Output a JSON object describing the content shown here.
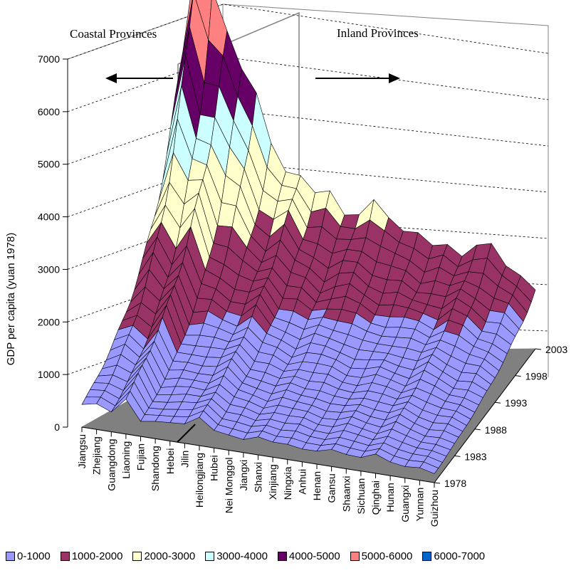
{
  "chart_data": {
    "type": "surface3d",
    "title": "",
    "ylabel": "GDP per capita (yuan 1978)",
    "ylim": [
      0,
      7000
    ],
    "z_ticks": [
      0,
      1000,
      2000,
      3000,
      4000,
      5000,
      6000,
      7000
    ],
    "provinces": [
      "Jiangsu",
      "Zhejiang",
      "Guangdong",
      "Liaoning",
      "Fujian",
      "Shandong",
      "Hebei",
      "Jilin",
      "Heilongjiang",
      "Hubei",
      "Nei Monggol",
      "Jiangxi",
      "Shanxi",
      "Xinjiang",
      "Ningxia",
      "Anhui",
      "Henan",
      "Gansu",
      "Shaanxi",
      "Sichuan",
      "Qinghai",
      "Hunan",
      "Guangxi",
      "Yunnan",
      "Guizhou"
    ],
    "year_ticks": [
      "1978",
      "1983",
      "1988",
      "1993",
      "1998",
      "2003"
    ],
    "region_labels": {
      "coastal": "Coastal Provinces",
      "inland": "Inland Provinces"
    },
    "coastal_count": 7,
    "values_1978": [
      430,
      470,
      380,
      690,
      280,
      320,
      360,
      380,
      520,
      330,
      300,
      250,
      330,
      290,
      300,
      240,
      240,
      330,
      280,
      250,
      360,
      270,
      220,
      230,
      170
    ],
    "values_2003": [
      4700,
      6900,
      5700,
      5000,
      4600,
      4100,
      3000,
      2600,
      2700,
      2300,
      2300,
      2000,
      2100,
      2300,
      2000,
      1900,
      1900,
      1600,
      1700,
      1600,
      1800,
      1800,
      1500,
      1400,
      1100
    ],
    "legend": [
      {
        "label": "0-1000",
        "color": "#9999ff"
      },
      {
        "label": "1000-2000",
        "color": "#993366"
      },
      {
        "label": "2000-3000",
        "color": "#ffffcc"
      },
      {
        "label": "3000-4000",
        "color": "#ccffff"
      },
      {
        "label": "4000-5000",
        "color": "#660066"
      },
      {
        "label": "5000-6000",
        "color": "#ff8080"
      },
      {
        "label": "6000-7000",
        "color": "#0066cc"
      }
    ],
    "floor_color": "#808080"
  }
}
